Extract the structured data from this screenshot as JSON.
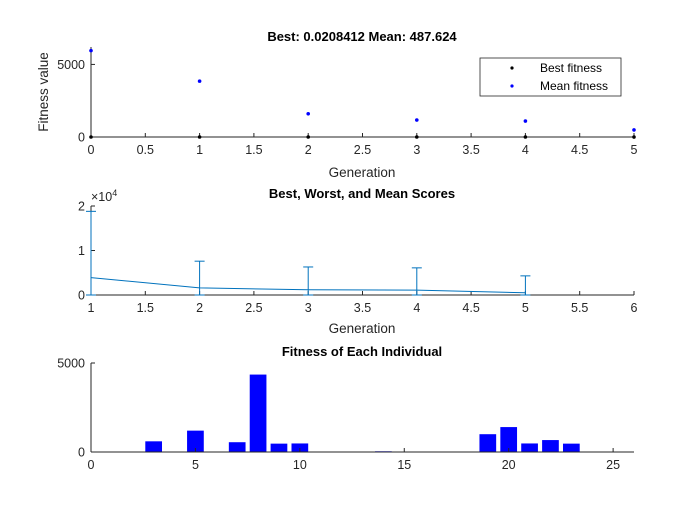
{
  "chart_data": [
    {
      "type": "scatter",
      "title": "Best: 0.0208412 Mean: 487.624",
      "xlabel": "Generation",
      "ylabel": "Fitness value",
      "xlim": [
        0,
        5
      ],
      "ylim": [
        0,
        6200
      ],
      "xticks": [
        "0",
        "0.5",
        "1",
        "1.5",
        "2",
        "2.5",
        "3",
        "3.5",
        "4",
        "4.5",
        "5"
      ],
      "yticks": [
        "0",
        "5000"
      ],
      "legend_position": "top-right",
      "series": [
        {
          "name": "Best fitness",
          "color": "#000000",
          "x": [
            0,
            1,
            2,
            3,
            4,
            5
          ],
          "y": [
            0,
            0,
            0,
            0,
            0,
            0.0208412
          ]
        },
        {
          "name": "Mean fitness",
          "color": "#0000ff",
          "x": [
            0,
            1,
            2,
            3,
            4,
            5
          ],
          "y": [
            5950,
            3850,
            1600,
            1170,
            1100,
            487.624
          ]
        }
      ]
    },
    {
      "type": "line",
      "title": "Best, Worst, and Mean Scores",
      "xlabel": "Generation",
      "ylabel": "",
      "exponent_label": "×10",
      "exponent_power": "4",
      "xlim": [
        1,
        6
      ],
      "ylim": [
        0,
        20000
      ],
      "xticks": [
        "1",
        "1.5",
        "2",
        "2.5",
        "3",
        "3.5",
        "4",
        "4.5",
        "5",
        "5.5",
        "6"
      ],
      "yticks": [
        "0",
        "1",
        "2"
      ],
      "color": "#0072bd",
      "x": [
        1,
        2,
        3,
        4,
        5
      ],
      "mean": [
        3900,
        1600,
        1170,
        1100,
        500
      ],
      "best": [
        0,
        0,
        0,
        0,
        0
      ],
      "worst": [
        18800,
        7600,
        6300,
        6100,
        4300
      ]
    },
    {
      "type": "bar",
      "title": "Fitness of Each Individual",
      "xlabel": "",
      "ylabel": "",
      "xlim": [
        0,
        26
      ],
      "ylim": [
        0,
        5000
      ],
      "xticks": [
        "0",
        "5",
        "10",
        "15",
        "20",
        "25"
      ],
      "yticks": [
        "0",
        "5000"
      ],
      "color": "#0000ff",
      "categories": [
        1,
        2,
        3,
        4,
        5,
        6,
        7,
        8,
        9,
        10,
        11,
        12,
        13,
        14,
        15,
        16,
        17,
        18,
        19,
        20,
        21,
        22,
        23,
        24,
        25
      ],
      "values": [
        0,
        0,
        600,
        0,
        1200,
        0,
        550,
        4350,
        470,
        480,
        0,
        0,
        0,
        40,
        0,
        0,
        0,
        0,
        1000,
        1400,
        480,
        670,
        470,
        0,
        0
      ]
    }
  ]
}
